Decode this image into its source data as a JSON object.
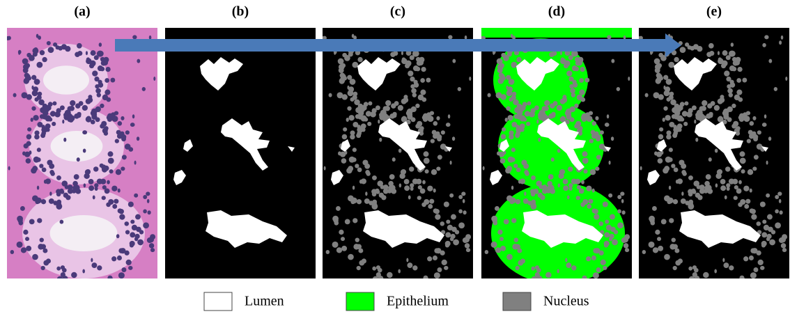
{
  "panels": [
    {
      "label": "(a)"
    },
    {
      "label": "(b)"
    },
    {
      "label": "(c)"
    },
    {
      "label": "(d)"
    },
    {
      "label": "(e)"
    }
  ],
  "legend": [
    {
      "label": "Lumen",
      "color": "#ffffff"
    },
    {
      "label": "Epithelium",
      "color": "#00ff00"
    },
    {
      "label": "Nucleus",
      "color": "#808080"
    }
  ]
}
